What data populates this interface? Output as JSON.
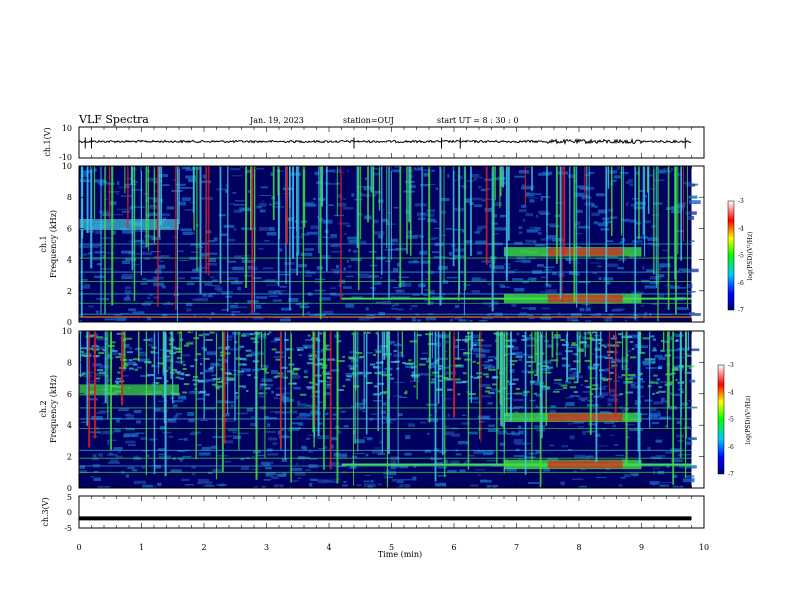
{
  "header": {
    "title": "VLF Spectra",
    "date": "Jan. 19, 2023",
    "station": "station=OUJ",
    "start": "start UT =  8 : 30 : 0"
  },
  "chart_data": [
    {
      "type": "line",
      "panel": "ch1-waveform",
      "ylabel": "ch.1(V)",
      "ylim": [
        -10,
        10
      ],
      "yticks": [
        "10",
        "-10"
      ],
      "xlim": [
        0,
        10
      ],
      "series": [
        {
          "values_description_free": true,
          "x": [
            0,
            1,
            2,
            3,
            4,
            4.4,
            5,
            5.8,
            6,
            7,
            7.6,
            8.2,
            8.8,
            9.8
          ],
          "y": [
            0,
            0,
            0,
            0,
            0,
            -1,
            0,
            1,
            0,
            0,
            1.2,
            0.8,
            1.2,
            0
          ]
        }
      ]
    },
    {
      "type": "heatmap",
      "panel": "ch1-spectrogram",
      "ylabel": "ch.1\nFrequency (kHz)",
      "ylabel_line1": "ch.1",
      "ylabel_line2": "Frequency (kHz)",
      "xlim": [
        0,
        10
      ],
      "ylim": [
        0,
        10
      ],
      "yticks": [
        "0",
        "2",
        "4",
        "6",
        "8",
        "10"
      ],
      "colorbar": {
        "label": "log(PSD)(V²/Hz)",
        "ticks": [
          "-3",
          "-4",
          "-5",
          "-6",
          "-7"
        ],
        "range": [
          -7,
          -3
        ]
      },
      "features": {
        "low_band_khz": [
          0.3,
          0.5
        ],
        "band_khz_after_4.2min": 1.5,
        "emission_7_to_9min_khz": [
          1.5,
          4.5
        ],
        "early_band_khz": [
          6,
          6.5
        ]
      }
    },
    {
      "type": "heatmap",
      "panel": "ch2-spectrogram",
      "ylabel_line1": "ch.2",
      "ylabel_line2": "Frequency (kHz)",
      "xlim": [
        0,
        10
      ],
      "ylim": [
        0,
        10
      ],
      "yticks": [
        "0",
        "2",
        "4",
        "6",
        "8",
        "10"
      ],
      "colorbar": {
        "label": "log(PSD)(V²/Hz)",
        "ticks": [
          "-3",
          "-4",
          "-5",
          "-6",
          "-7"
        ],
        "range": [
          -7,
          -3
        ]
      }
    },
    {
      "type": "line",
      "panel": "ch3-waveform",
      "ylabel": "ch.3(V)",
      "ylim": [
        -5,
        5
      ],
      "yticks": [
        "5",
        "0",
        "-5"
      ],
      "xlim": [
        0,
        10
      ],
      "xlabel": "Time (min)",
      "xticks": [
        "0",
        "1",
        "2",
        "3",
        "4",
        "5",
        "6",
        "7",
        "8",
        "9",
        "10"
      ],
      "series": [
        {
          "x": [
            0,
            9.8
          ],
          "y": [
            -2,
            -2
          ]
        }
      ]
    }
  ],
  "colors": {
    "spectro_low": "#000060",
    "spectro_mid": "#1565c0",
    "spectro_cyan": "#40c8e0",
    "spectro_green": "#40e040",
    "spectro_red": "#e02020"
  }
}
